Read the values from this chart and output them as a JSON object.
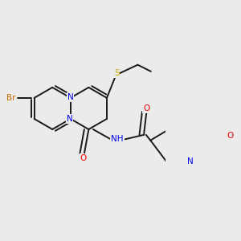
{
  "bg_color": "#ebebeb",
  "atom_colors": {
    "C": "#1a1a1a",
    "N": "#0000ee",
    "O": "#ee0000",
    "S": "#ccaa00",
    "Br": "#cc6600",
    "H": "#555555"
  },
  "bond_color": "#1a1a1a",
  "bond_width": 1.4,
  "font_size_atom": 7.5,
  "figsize": [
    3.0,
    3.0
  ],
  "dpi": 100
}
